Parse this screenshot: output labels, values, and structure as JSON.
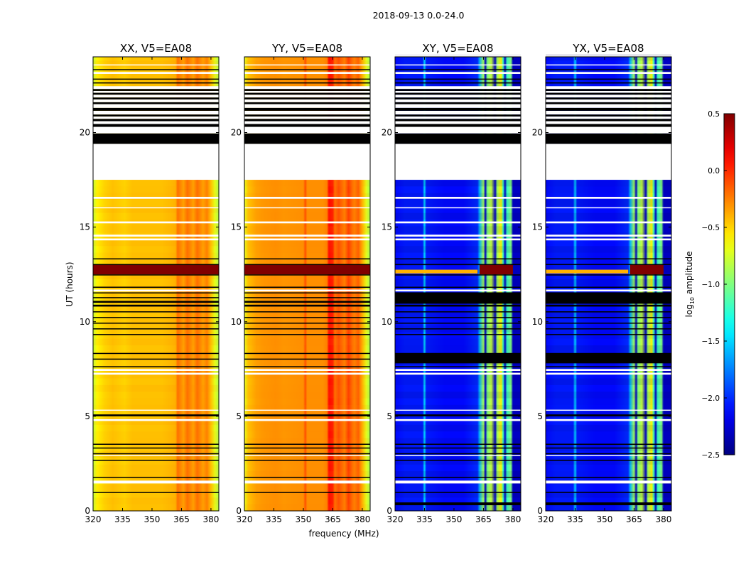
{
  "chart_data": {
    "type": "heatmap",
    "title": "2018-09-13 0.0-24.0",
    "xlabel": "frequency (MHz)",
    "ylabel": "UT (hours)",
    "xlim": [
      320,
      384
    ],
    "ylim": [
      0,
      24
    ],
    "xticks": [
      "320",
      "335",
      "350",
      "365",
      "380"
    ],
    "xtick_values": [
      320,
      335,
      350,
      365,
      380
    ],
    "yticks": [
      "0",
      "5",
      "10",
      "15",
      "20"
    ],
    "ytick_values": [
      0,
      5,
      10,
      15,
      20
    ],
    "colormap": "jet",
    "colorbar": {
      "label": "log10 amplitude",
      "label_main": "log",
      "label_sub": "10",
      "label_rest": " amplitude",
      "range": [
        -2.5,
        0.5
      ],
      "ticks": [
        "0.5",
        "0.0",
        "−0.5",
        "−1.0",
        "−1.5",
        "−2.0",
        "−2.5"
      ],
      "tick_values": [
        0.5,
        0.0,
        -0.5,
        -1.0,
        -1.5,
        -2.0,
        -2.5
      ]
    },
    "panels": [
      {
        "title": "XX, V5=EA08",
        "kind": "parallel",
        "profile_freqs": [
          320,
          322,
          326,
          330,
          336,
          340,
          350,
          355,
          360,
          362,
          363,
          365,
          366,
          368,
          370,
          371,
          373,
          375,
          376,
          378,
          380,
          382,
          384
        ],
        "profile_values": [
          -0.8,
          -0.6,
          -0.5,
          -0.45,
          -0.5,
          -0.45,
          -0.45,
          -0.45,
          -0.42,
          -0.4,
          -0.2,
          -0.3,
          -0.35,
          -0.2,
          -0.3,
          -0.35,
          -0.2,
          -0.3,
          -0.35,
          -0.25,
          -0.45,
          -0.7,
          -0.85
        ]
      },
      {
        "title": "YY, V5=EA08",
        "kind": "parallel",
        "profile_freqs": [
          320,
          322,
          326,
          330,
          336,
          340,
          350,
          351,
          352,
          355,
          360,
          362,
          363,
          365,
          366,
          368,
          370,
          371,
          373,
          375,
          376,
          378,
          380,
          382,
          384
        ],
        "profile_values": [
          -0.7,
          -0.45,
          -0.35,
          -0.32,
          -0.3,
          -0.32,
          -0.3,
          -0.1,
          -0.3,
          -0.3,
          -0.3,
          -0.25,
          0.1,
          0.05,
          -0.2,
          -0.1,
          -0.2,
          -0.25,
          -0.05,
          -0.2,
          -0.25,
          -0.15,
          -0.4,
          -0.7,
          -0.9
        ]
      },
      {
        "title": "XY, V5=EA08",
        "kind": "cross",
        "profile_freqs": [
          320,
          325,
          334,
          335,
          336,
          345,
          355,
          362,
          363,
          365,
          366,
          367,
          369,
          371,
          372,
          374,
          375,
          376,
          377,
          379,
          380,
          384
        ],
        "profile_values": [
          -2.1,
          -2.05,
          -2.05,
          -1.5,
          -2.05,
          -2.1,
          -2.1,
          -2.0,
          -1.6,
          -0.9,
          -2.3,
          -1.0,
          -0.8,
          -2.3,
          -0.9,
          -0.6,
          -1.2,
          -2.3,
          -1.2,
          -1.0,
          -2.3,
          -2.3
        ]
      },
      {
        "title": "YX, V5=EA08",
        "kind": "cross",
        "profile_freqs": [
          320,
          325,
          334,
          335,
          336,
          345,
          355,
          362,
          363,
          365,
          366,
          367,
          369,
          371,
          372,
          374,
          375,
          376,
          377,
          379,
          380,
          384
        ],
        "profile_values": [
          -2.1,
          -2.05,
          -2.05,
          -1.5,
          -2.05,
          -2.1,
          -2.1,
          -2.0,
          -1.6,
          -0.9,
          -2.3,
          -1.0,
          -0.8,
          -2.3,
          -0.9,
          -0.6,
          -1.2,
          -2.3,
          -1.2,
          -1.0,
          -2.3,
          -2.3
        ]
      }
    ],
    "flagged_black_hours": [
      [
        0.95,
        1.0
      ],
      [
        1.75,
        1.8
      ],
      [
        2.65,
        2.7
      ],
      [
        3.0,
        3.05
      ],
      [
        3.3,
        3.35
      ],
      [
        3.5,
        3.55
      ],
      [
        5.0,
        5.1
      ],
      [
        7.6,
        7.65
      ],
      [
        8.0,
        8.05
      ],
      [
        8.3,
        8.35
      ],
      [
        9.3,
        9.35
      ],
      [
        9.6,
        9.65
      ],
      [
        9.9,
        9.95
      ],
      [
        10.2,
        10.25
      ],
      [
        10.5,
        10.55
      ],
      [
        10.8,
        10.9
      ],
      [
        11.0,
        11.1
      ],
      [
        11.25,
        11.3
      ],
      [
        11.5,
        11.55
      ],
      [
        11.8,
        11.85
      ],
      [
        12.45,
        12.5
      ],
      [
        13.0,
        13.05
      ],
      [
        13.3,
        13.35
      ],
      [
        19.4,
        19.95
      ],
      [
        20.3,
        20.45
      ],
      [
        20.6,
        20.72
      ],
      [
        20.85,
        20.95
      ],
      [
        21.15,
        21.3
      ],
      [
        21.5,
        21.6
      ],
      [
        21.75,
        21.85
      ],
      [
        22.0,
        22.1
      ],
      [
        22.2,
        22.3
      ],
      [
        22.6,
        22.65
      ],
      [
        22.8,
        22.85
      ],
      [
        23.3,
        23.35
      ]
    ],
    "flagged_white_hours": [
      [
        1.45,
        1.6
      ],
      [
        2.9,
        2.95
      ],
      [
        4.75,
        4.85
      ],
      [
        5.3,
        5.35
      ],
      [
        7.2,
        7.3
      ],
      [
        7.4,
        7.5
      ],
      [
        11.6,
        11.7
      ],
      [
        14.3,
        14.4
      ],
      [
        14.5,
        14.6
      ],
      [
        15.2,
        15.3
      ],
      [
        16.0,
        16.05
      ],
      [
        16.5,
        16.6
      ],
      [
        17.5,
        19.4
      ],
      [
        19.95,
        20.3
      ],
      [
        20.45,
        20.6
      ],
      [
        20.72,
        20.85
      ],
      [
        20.95,
        21.15
      ],
      [
        21.3,
        21.5
      ],
      [
        21.6,
        21.75
      ],
      [
        21.85,
        22.0
      ],
      [
        22.1,
        22.2
      ],
      [
        22.3,
        22.45
      ],
      [
        23.1,
        23.2
      ],
      [
        23.55,
        23.6
      ]
    ],
    "cross_extra_black_hours": [
      [
        7.8,
        8.3
      ],
      [
        10.95,
        11.55
      ],
      [
        0.3,
        0.45
      ]
    ],
    "rfi_events": [
      {
        "panels": [
          "XX",
          "YY"
        ],
        "hours": [
          12.5,
          13.0
        ],
        "freq": [
          320,
          384
        ],
        "value": 0.5
      },
      {
        "panels": [
          "XY",
          "YX"
        ],
        "hours": [
          12.55,
          12.75
        ],
        "freq": [
          320,
          362
        ],
        "value": -0.4
      },
      {
        "panels": [
          "XY",
          "YX"
        ],
        "hours": [
          12.5,
          13.0
        ],
        "freq": [
          363,
          380
        ],
        "value": 0.5
      }
    ]
  }
}
